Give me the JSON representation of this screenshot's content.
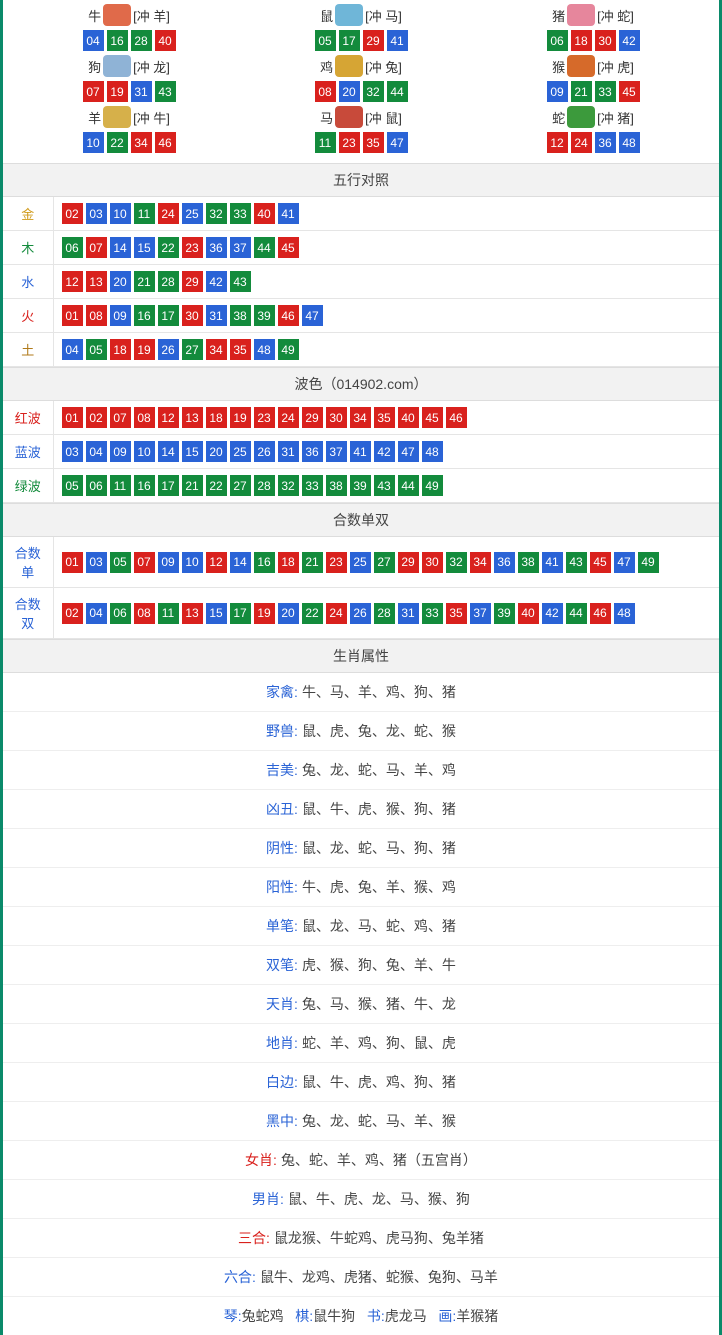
{
  "colors": {
    "red": "#d9211d",
    "blue": "#2a63d6",
    "green": "#138b3c",
    "border_teal": "#0a8a6a",
    "header_bg": "#f2f2f2",
    "row_border": "#e5e5e5",
    "text": "#333333"
  },
  "wuxing_label_colors": {
    "金": "#d09a1a",
    "木": "#138b3c",
    "水": "#2a63d6",
    "火": "#d9211d",
    "土": "#b07a1a"
  },
  "wave_label_colors": {
    "红波": "#d9211d",
    "蓝波": "#2a63d6",
    "绿波": "#138b3c"
  },
  "heshu_label_color": "#2a63d6",
  "zodiac_icon_colors": {
    "牛": "#e06a4a",
    "鼠": "#6fb6d8",
    "猪": "#e6869c",
    "狗": "#8fb3d6",
    "鸡": "#d6a534",
    "猴": "#d66a2a",
    "羊": "#d6b04a",
    "马": "#c84a3a",
    "蛇": "#3c9a3c"
  },
  "zodiac": [
    {
      "name": "牛",
      "clash": "[冲 羊]",
      "nums": [
        [
          "04",
          "blue"
        ],
        [
          "16",
          "green"
        ],
        [
          "28",
          "green"
        ],
        [
          "40",
          "red"
        ]
      ]
    },
    {
      "name": "鼠",
      "clash": "[冲 马]",
      "nums": [
        [
          "05",
          "green"
        ],
        [
          "17",
          "green"
        ],
        [
          "29",
          "red"
        ],
        [
          "41",
          "blue"
        ]
      ]
    },
    {
      "name": "猪",
      "clash": "[冲 蛇]",
      "nums": [
        [
          "06",
          "green"
        ],
        [
          "18",
          "red"
        ],
        [
          "30",
          "red"
        ],
        [
          "42",
          "blue"
        ]
      ]
    },
    {
      "name": "狗",
      "clash": "[冲 龙]",
      "nums": [
        [
          "07",
          "red"
        ],
        [
          "19",
          "red"
        ],
        [
          "31",
          "blue"
        ],
        [
          "43",
          "green"
        ]
      ]
    },
    {
      "name": "鸡",
      "clash": "[冲 兔]",
      "nums": [
        [
          "08",
          "red"
        ],
        [
          "20",
          "blue"
        ],
        [
          "32",
          "green"
        ],
        [
          "44",
          "green"
        ]
      ]
    },
    {
      "name": "猴",
      "clash": "[冲 虎]",
      "nums": [
        [
          "09",
          "blue"
        ],
        [
          "21",
          "green"
        ],
        [
          "33",
          "green"
        ],
        [
          "45",
          "red"
        ]
      ]
    },
    {
      "name": "羊",
      "clash": "[冲 牛]",
      "nums": [
        [
          "10",
          "blue"
        ],
        [
          "22",
          "green"
        ],
        [
          "34",
          "red"
        ],
        [
          "46",
          "red"
        ]
      ]
    },
    {
      "name": "马",
      "clash": "[冲 鼠]",
      "nums": [
        [
          "11",
          "green"
        ],
        [
          "23",
          "red"
        ],
        [
          "35",
          "red"
        ],
        [
          "47",
          "blue"
        ]
      ]
    },
    {
      "name": "蛇",
      "clash": "[冲 猪]",
      "nums": [
        [
          "12",
          "red"
        ],
        [
          "24",
          "red"
        ],
        [
          "36",
          "blue"
        ],
        [
          "48",
          "blue"
        ]
      ]
    }
  ],
  "sections": {
    "wuxing_title": "五行对照",
    "wave_title": "波色（014902.com）",
    "heshu_title": "合数单双",
    "attr_title": "生肖属性"
  },
  "wuxing": [
    {
      "label": "金",
      "nums": [
        [
          "02",
          "red"
        ],
        [
          "03",
          "blue"
        ],
        [
          "10",
          "blue"
        ],
        [
          "11",
          "green"
        ],
        [
          "24",
          "red"
        ],
        [
          "25",
          "blue"
        ],
        [
          "32",
          "green"
        ],
        [
          "33",
          "green"
        ],
        [
          "40",
          "red"
        ],
        [
          "41",
          "blue"
        ]
      ]
    },
    {
      "label": "木",
      "nums": [
        [
          "06",
          "green"
        ],
        [
          "07",
          "red"
        ],
        [
          "14",
          "blue"
        ],
        [
          "15",
          "blue"
        ],
        [
          "22",
          "green"
        ],
        [
          "23",
          "red"
        ],
        [
          "36",
          "blue"
        ],
        [
          "37",
          "blue"
        ],
        [
          "44",
          "green"
        ],
        [
          "45",
          "red"
        ]
      ]
    },
    {
      "label": "水",
      "nums": [
        [
          "12",
          "red"
        ],
        [
          "13",
          "red"
        ],
        [
          "20",
          "blue"
        ],
        [
          "21",
          "green"
        ],
        [
          "28",
          "green"
        ],
        [
          "29",
          "red"
        ],
        [
          "42",
          "blue"
        ],
        [
          "43",
          "green"
        ]
      ]
    },
    {
      "label": "火",
      "nums": [
        [
          "01",
          "red"
        ],
        [
          "08",
          "red"
        ],
        [
          "09",
          "blue"
        ],
        [
          "16",
          "green"
        ],
        [
          "17",
          "green"
        ],
        [
          "30",
          "red"
        ],
        [
          "31",
          "blue"
        ],
        [
          "38",
          "green"
        ],
        [
          "39",
          "green"
        ],
        [
          "46",
          "red"
        ],
        [
          "47",
          "blue"
        ]
      ]
    },
    {
      "label": "土",
      "nums": [
        [
          "04",
          "blue"
        ],
        [
          "05",
          "green"
        ],
        [
          "18",
          "red"
        ],
        [
          "19",
          "red"
        ],
        [
          "26",
          "blue"
        ],
        [
          "27",
          "green"
        ],
        [
          "34",
          "red"
        ],
        [
          "35",
          "red"
        ],
        [
          "48",
          "blue"
        ],
        [
          "49",
          "green"
        ]
      ]
    }
  ],
  "waves": [
    {
      "label": "红波",
      "nums": [
        [
          "01",
          "red"
        ],
        [
          "02",
          "red"
        ],
        [
          "07",
          "red"
        ],
        [
          "08",
          "red"
        ],
        [
          "12",
          "red"
        ],
        [
          "13",
          "red"
        ],
        [
          "18",
          "red"
        ],
        [
          "19",
          "red"
        ],
        [
          "23",
          "red"
        ],
        [
          "24",
          "red"
        ],
        [
          "29",
          "red"
        ],
        [
          "30",
          "red"
        ],
        [
          "34",
          "red"
        ],
        [
          "35",
          "red"
        ],
        [
          "40",
          "red"
        ],
        [
          "45",
          "red"
        ],
        [
          "46",
          "red"
        ]
      ]
    },
    {
      "label": "蓝波",
      "nums": [
        [
          "03",
          "blue"
        ],
        [
          "04",
          "blue"
        ],
        [
          "09",
          "blue"
        ],
        [
          "10",
          "blue"
        ],
        [
          "14",
          "blue"
        ],
        [
          "15",
          "blue"
        ],
        [
          "20",
          "blue"
        ],
        [
          "25",
          "blue"
        ],
        [
          "26",
          "blue"
        ],
        [
          "31",
          "blue"
        ],
        [
          "36",
          "blue"
        ],
        [
          "37",
          "blue"
        ],
        [
          "41",
          "blue"
        ],
        [
          "42",
          "blue"
        ],
        [
          "47",
          "blue"
        ],
        [
          "48",
          "blue"
        ]
      ]
    },
    {
      "label": "绿波",
      "nums": [
        [
          "05",
          "green"
        ],
        [
          "06",
          "green"
        ],
        [
          "11",
          "green"
        ],
        [
          "16",
          "green"
        ],
        [
          "17",
          "green"
        ],
        [
          "21",
          "green"
        ],
        [
          "22",
          "green"
        ],
        [
          "27",
          "green"
        ],
        [
          "28",
          "green"
        ],
        [
          "32",
          "green"
        ],
        [
          "33",
          "green"
        ],
        [
          "38",
          "green"
        ],
        [
          "39",
          "green"
        ],
        [
          "43",
          "green"
        ],
        [
          "44",
          "green"
        ],
        [
          "49",
          "green"
        ]
      ]
    }
  ],
  "heshu": [
    {
      "label": "合数单",
      "nums": [
        [
          "01",
          "red"
        ],
        [
          "03",
          "blue"
        ],
        [
          "05",
          "green"
        ],
        [
          "07",
          "red"
        ],
        [
          "09",
          "blue"
        ],
        [
          "10",
          "blue"
        ],
        [
          "12",
          "red"
        ],
        [
          "14",
          "blue"
        ],
        [
          "16",
          "green"
        ],
        [
          "18",
          "red"
        ],
        [
          "21",
          "green"
        ],
        [
          "23",
          "red"
        ],
        [
          "25",
          "blue"
        ],
        [
          "27",
          "green"
        ],
        [
          "29",
          "red"
        ],
        [
          "30",
          "red"
        ],
        [
          "32",
          "green"
        ],
        [
          "34",
          "red"
        ],
        [
          "36",
          "blue"
        ],
        [
          "38",
          "green"
        ],
        [
          "41",
          "blue"
        ],
        [
          "43",
          "green"
        ],
        [
          "45",
          "red"
        ],
        [
          "47",
          "blue"
        ],
        [
          "49",
          "green"
        ]
      ]
    },
    {
      "label": "合数双",
      "nums": [
        [
          "02",
          "red"
        ],
        [
          "04",
          "blue"
        ],
        [
          "06",
          "green"
        ],
        [
          "08",
          "red"
        ],
        [
          "11",
          "green"
        ],
        [
          "13",
          "red"
        ],
        [
          "15",
          "blue"
        ],
        [
          "17",
          "green"
        ],
        [
          "19",
          "red"
        ],
        [
          "20",
          "blue"
        ],
        [
          "22",
          "green"
        ],
        [
          "24",
          "red"
        ],
        [
          "26",
          "blue"
        ],
        [
          "28",
          "green"
        ],
        [
          "31",
          "blue"
        ],
        [
          "33",
          "green"
        ],
        [
          "35",
          "red"
        ],
        [
          "37",
          "blue"
        ],
        [
          "39",
          "green"
        ],
        [
          "40",
          "red"
        ],
        [
          "42",
          "blue"
        ],
        [
          "44",
          "green"
        ],
        [
          "46",
          "red"
        ],
        [
          "48",
          "blue"
        ]
      ]
    }
  ],
  "attrs": [
    {
      "label": "家禽:",
      "color": "#2a63d6",
      "text": "牛、马、羊、鸡、狗、猪"
    },
    {
      "label": "野兽:",
      "color": "#2a63d6",
      "text": "鼠、虎、兔、龙、蛇、猴"
    },
    {
      "label": "吉美:",
      "color": "#2a63d6",
      "text": "兔、龙、蛇、马、羊、鸡"
    },
    {
      "label": "凶丑:",
      "color": "#2a63d6",
      "text": "鼠、牛、虎、猴、狗、猪"
    },
    {
      "label": "阴性:",
      "color": "#2a63d6",
      "text": "鼠、龙、蛇、马、狗、猪"
    },
    {
      "label": "阳性:",
      "color": "#2a63d6",
      "text": "牛、虎、兔、羊、猴、鸡"
    },
    {
      "label": "单笔:",
      "color": "#2a63d6",
      "text": "鼠、龙、马、蛇、鸡、猪"
    },
    {
      "label": "双笔:",
      "color": "#2a63d6",
      "text": "虎、猴、狗、兔、羊、牛"
    },
    {
      "label": "天肖:",
      "color": "#2a63d6",
      "text": "兔、马、猴、猪、牛、龙"
    },
    {
      "label": "地肖:",
      "color": "#2a63d6",
      "text": "蛇、羊、鸡、狗、鼠、虎"
    },
    {
      "label": "白边:",
      "color": "#2a63d6",
      "text": "鼠、牛、虎、鸡、狗、猪"
    },
    {
      "label": "黑中:",
      "color": "#2a63d6",
      "text": "兔、龙、蛇、马、羊、猴"
    },
    {
      "label": "女肖:",
      "color": "#d9211d",
      "text": "兔、蛇、羊、鸡、猪（五宫肖）"
    },
    {
      "label": "男肖:",
      "color": "#2a63d6",
      "text": "鼠、牛、虎、龙、马、猴、狗"
    },
    {
      "label": "三合:",
      "color": "#d9211d",
      "text": "鼠龙猴、牛蛇鸡、虎马狗、兔羊猪"
    },
    {
      "label": "六合:",
      "color": "#2a63d6",
      "text": "鼠牛、龙鸡、虎猪、蛇猴、兔狗、马羊"
    }
  ],
  "bottom_row": [
    {
      "label": "琴:",
      "color": "#2a63d6",
      "text": "兔蛇鸡"
    },
    {
      "label": "棋:",
      "color": "#2a63d6",
      "text": "鼠牛狗"
    },
    {
      "label": "书:",
      "color": "#2a63d6",
      "text": "虎龙马"
    },
    {
      "label": "画:",
      "color": "#2a63d6",
      "text": "羊猴猪"
    }
  ]
}
